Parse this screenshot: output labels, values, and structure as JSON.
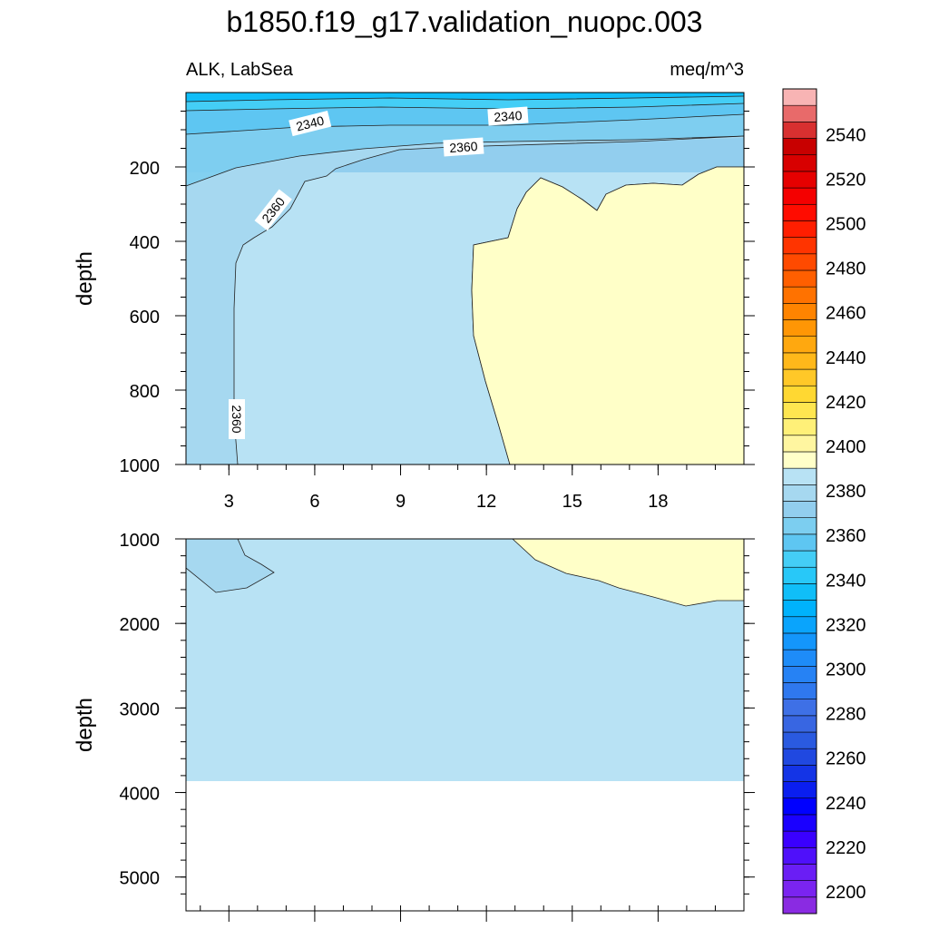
{
  "chart_data": {
    "type": "heatmap",
    "title": "b1850.f19_g17.validation_nuopc.003",
    "subtitle_left": "ALK, LabSea",
    "subtitle_right": "meq/m^3",
    "panels": [
      {
        "ylabel": "depth",
        "ylim": [
          1000,
          0
        ],
        "yticks": [
          200,
          400,
          600,
          800,
          1000
        ],
        "xlim": [
          1.5,
          21.0
        ],
        "xticks": [
          3,
          6,
          9,
          12,
          15,
          18
        ],
        "contour_labels": [
          "2340",
          "2340",
          "2360",
          "2360",
          "2360"
        ]
      },
      {
        "ylabel": "depth",
        "ylim": [
          5400,
          1000
        ],
        "yticks": [
          1000,
          2000,
          3000,
          4000,
          5000
        ],
        "xlim": [
          1.5,
          21.0
        ],
        "data_bottom_depth": 3870
      }
    ],
    "colorbar": {
      "levels": [
        2190,
        2195,
        2200,
        2205,
        2210,
        2215,
        2220,
        2225,
        2230,
        2235,
        2240,
        2245,
        2250,
        2255,
        2260,
        2265,
        2270,
        2275,
        2280,
        2285,
        2290,
        2295,
        2300,
        2305,
        2310,
        2315,
        2320,
        2325,
        2330,
        2335,
        2340,
        2345,
        2350,
        2355,
        2360,
        2365,
        2370,
        2375,
        2380,
        2385,
        2390,
        2395,
        2400,
        2405,
        2410,
        2415,
        2420,
        2425,
        2430,
        2435,
        2440,
        2445,
        2450,
        2455,
        2460,
        2465,
        2470,
        2475,
        2480,
        2485,
        2490,
        2495,
        2500,
        2505,
        2510,
        2515,
        2520,
        2525,
        2530,
        2535,
        2540,
        2545,
        2550,
        2555,
        2560
      ],
      "tick_labels": [
        "2200",
        "2220",
        "2240",
        "2260",
        "2280",
        "2300",
        "2320",
        "2340",
        "2360",
        "2380",
        "2400",
        "2420",
        "2440",
        "2460",
        "2480",
        "2500",
        "2520",
        "2540"
      ],
      "colors": [
        "#8a2be2",
        "#7a24f0",
        "#6a1ef5",
        "#4f10fa",
        "#3a00ff",
        "#1a00ff",
        "#0000ff",
        "#0a1eef",
        "#1434e6",
        "#2048e0",
        "#2a5ae0",
        "#3866e2",
        "#3e70e6",
        "#2f78ee",
        "#2682f4",
        "#1e8cf8",
        "#1496fb",
        "#0aa4fc",
        "#00b2fc",
        "#10bef8",
        "#28c8f8",
        "#44cef6",
        "#5ec6f2",
        "#7ccef0",
        "#92ceee",
        "#a6d8f0",
        "#b8e2f4",
        "#ffffc8",
        "#fff6a0",
        "#fff078",
        "#ffe650",
        "#ffd832",
        "#ffc828",
        "#ffb81a",
        "#ffa80f",
        "#ff9605",
        "#ff8400",
        "#ff7200",
        "#ff5f00",
        "#ff4a00",
        "#ff3400",
        "#ff1e00",
        "#ff0c00",
        "#f40000",
        "#e60000",
        "#d80000",
        "#c80000",
        "#d83030",
        "#e86a6a",
        "#f8b4b4"
      ]
    }
  }
}
